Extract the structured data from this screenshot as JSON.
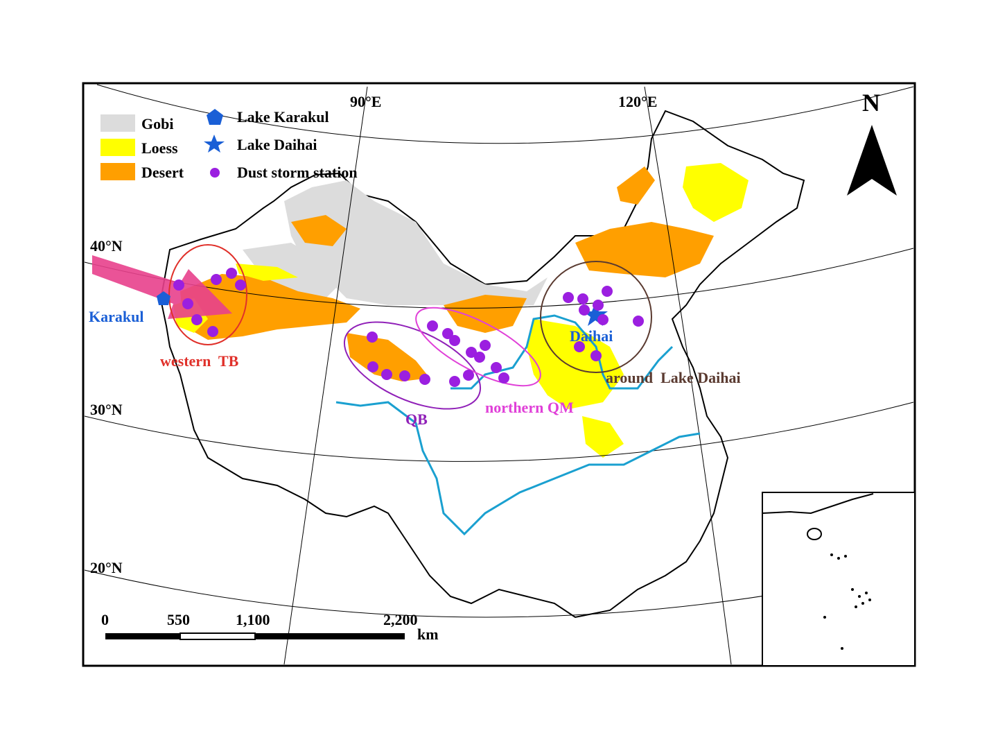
{
  "graticule_labels": {
    "lon_90": "90°E",
    "lon_120": "120°E",
    "lat_40": "40°N",
    "lat_30": "30°N",
    "lat_20": "20°N"
  },
  "north_arrow": {
    "label": "N"
  },
  "legend": {
    "gobi": "Gobi",
    "loess": "Loess",
    "desert": "Desert",
    "lake_karakul": "Lake Karakul",
    "lake_daihai": "Lake Daihai",
    "dust_station": "Dust storm station"
  },
  "region_labels": {
    "karakul": "Karakul",
    "daihai": "Daihai",
    "western_tb": "western  TB",
    "qb": "QB",
    "northern_qm": "northern QM",
    "around_daihai": "around  Lake Daihai"
  },
  "scale_bar": {
    "tick_0": "0",
    "tick_550": "550",
    "tick_1100": "1,100",
    "tick_2200": "2,200",
    "unit": "km"
  },
  "colors": {
    "gobi": "#dcdcdc",
    "loess": "#ffff00",
    "desert": "#ff9f00",
    "river": "#1aa0d0",
    "station": "#9b1fe0",
    "lake_marker": "#1a5fd6",
    "western_tb": "#e0302a",
    "qb": "#9020b8",
    "northern_qm": "#e040d8",
    "around_daihai": "#5a3a30",
    "arrow": "#e8408c"
  }
}
